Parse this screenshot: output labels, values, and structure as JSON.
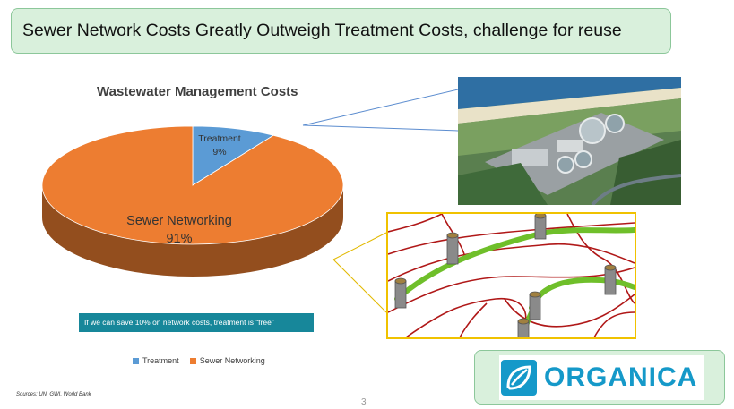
{
  "slide": {
    "title": "Sewer Network Costs Greatly Outweigh Treatment Costs, challenge for reuse",
    "note": "If we can save 10% on network costs, treatment is “free”",
    "sources": "Sources: UN, GWI, World Bank",
    "page_number": "3"
  },
  "chart_data": {
    "type": "pie",
    "title": "Wastewater Management Costs",
    "categories": [
      "Treatment",
      "Sewer Networking"
    ],
    "values": [
      9,
      91
    ],
    "value_labels": [
      "9%",
      "91%"
    ],
    "colors": [
      "#5b9bd5",
      "#ed7d31"
    ],
    "legend": "bottom",
    "style": "3d"
  },
  "logo": {
    "text": "ORGANICA",
    "color": "#1599c9"
  }
}
